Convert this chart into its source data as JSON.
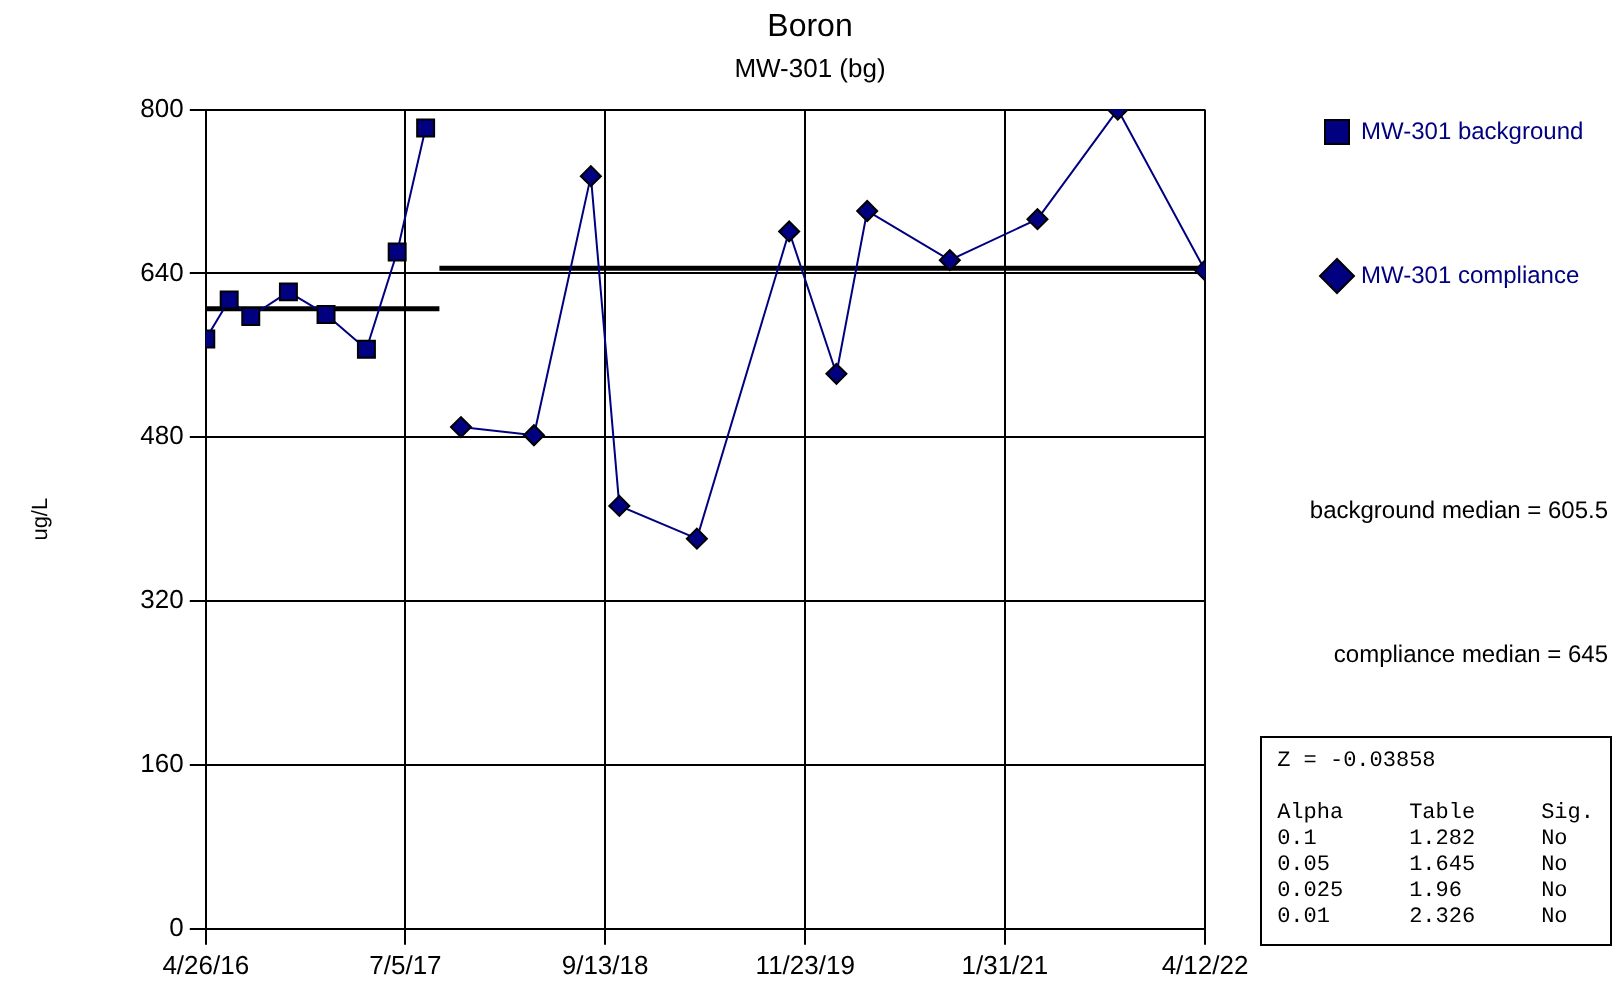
{
  "chart_data": {
    "type": "line",
    "title": "Boron",
    "subtitle": "MW-301 (bg)",
    "ylabel": "ug/L",
    "xlim": [
      "2016-04-26",
      "2022-04-12"
    ],
    "xticks": [
      {
        "value": "2016-04-26",
        "label": "4/26/16"
      },
      {
        "value": "2017-07-05",
        "label": "7/5/17"
      },
      {
        "value": "2018-09-13",
        "label": "9/13/18"
      },
      {
        "value": "2019-11-23",
        "label": "11/23/19"
      },
      {
        "value": "2021-01-31",
        "label": "1/31/21"
      },
      {
        "value": "2022-04-12",
        "label": "4/12/22"
      }
    ],
    "ylim": [
      0,
      800
    ],
    "yticks": [
      0,
      160,
      320,
      480,
      640,
      800
    ],
    "grid": true,
    "legend": "right",
    "series": [
      {
        "name": "MW-301 background",
        "color": "#000080",
        "marker": "square",
        "x": [
          "2016-04-26",
          "2016-06-16",
          "2016-08-02",
          "2016-10-23",
          "2017-01-13",
          "2017-04-11",
          "2017-06-17",
          "2017-08-18"
        ],
        "values": [
          576,
          614,
          598,
          622,
          600,
          566,
          661,
          782
        ]
      },
      {
        "name": "MW-301 compliance",
        "color": "#000080",
        "marker": "diamond",
        "x": [
          "2017-11-03",
          "2018-04-11",
          "2018-08-13",
          "2018-10-14",
          "2019-04-01",
          "2019-10-19",
          "2020-01-30",
          "2020-04-06",
          "2020-10-03",
          "2021-04-12",
          "2021-10-04",
          "2022-04-12"
        ],
        "values": [
          490,
          482,
          735,
          413,
          381,
          681,
          542,
          701,
          653,
          693,
          800,
          643
        ]
      },
      {
        "color": "#000000",
        "marker": "none",
        "x": [
          "2016-04-26",
          "2017-09-17"
        ],
        "values": [
          605.5,
          605.5
        ]
      },
      {
        "color": "#000000",
        "marker": "none",
        "x": [
          "2017-09-17",
          "2022-04-12"
        ],
        "values": [
          645,
          645
        ]
      }
    ],
    "annotations": [
      "background median = 605.5",
      "compliance median = 645",
      "Z = -0.03858",
      "Alpha     Table     Sig.",
      "0.1       1.282     No",
      "0.05      1.645     No",
      "0.025     1.96      No",
      "0.01      2.326     No"
    ]
  }
}
